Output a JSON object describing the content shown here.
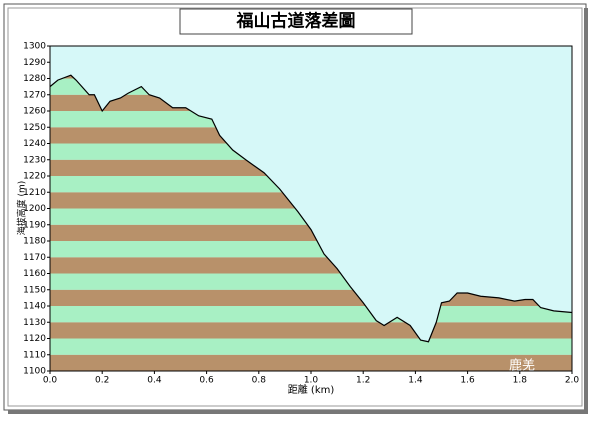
{
  "chart_data": {
    "type": "area",
    "title": "福山古道落差圖",
    "y_label": "海拔高度 (m)",
    "x_label": "距離 (km)",
    "annotation": "鹿羌",
    "x": [
      0,
      0.03,
      0.08,
      0.1,
      0.15,
      0.17,
      0.2,
      0.23,
      0.27,
      0.3,
      0.35,
      0.38,
      0.42,
      0.47,
      0.52,
      0.57,
      0.62,
      0.65,
      0.7,
      0.75,
      0.82,
      0.88,
      0.95,
      1.0,
      1.05,
      1.1,
      1.15,
      1.2,
      1.25,
      1.28,
      1.33,
      1.38,
      1.42,
      1.45,
      1.48,
      1.5,
      1.53,
      1.56,
      1.6,
      1.65,
      1.72,
      1.78,
      1.82,
      1.85,
      1.88,
      1.93,
      2.0
    ],
    "series": [
      {
        "values": [
          1275,
          1279,
          1282,
          1279,
          1270,
          1270,
          1260,
          1266,
          1268,
          1271,
          1275,
          1270,
          1268,
          1262,
          1262,
          1257,
          1255,
          1245,
          1236,
          1230,
          1222,
          1212,
          1198,
          1187,
          1172,
          1163,
          1152,
          1142,
          1131,
          1128,
          1133,
          1128,
          1119,
          1118,
          1130,
          1142,
          1143,
          1148,
          1148,
          1146,
          1145,
          1143,
          1144,
          1144,
          1139,
          1137,
          1136
        ],
        "color": "#000000"
      }
    ],
    "band_colors": [
      "#b8916a",
      "#a8f0c4"
    ],
    "background": "#d6f8f8",
    "xlim": [
      0,
      2
    ],
    "ylim": [
      1100,
      1300
    ],
    "xticks": [
      {
        "value": 0,
        "label": "0.0"
      },
      0.2,
      0.4,
      0.6,
      0.8,
      {
        "value": 1,
        "label": "1.0"
      },
      1.2,
      1.4,
      1.6,
      1.8,
      {
        "value": 2,
        "label": "2.0"
      }
    ],
    "yticks": [
      1100,
      1110,
      1120,
      1130,
      1140,
      1150,
      1160,
      1170,
      1180,
      1190,
      1200,
      1210,
      1220,
      1230,
      1240,
      1250,
      1260,
      1270,
      1280,
      1290,
      1300
    ]
  }
}
